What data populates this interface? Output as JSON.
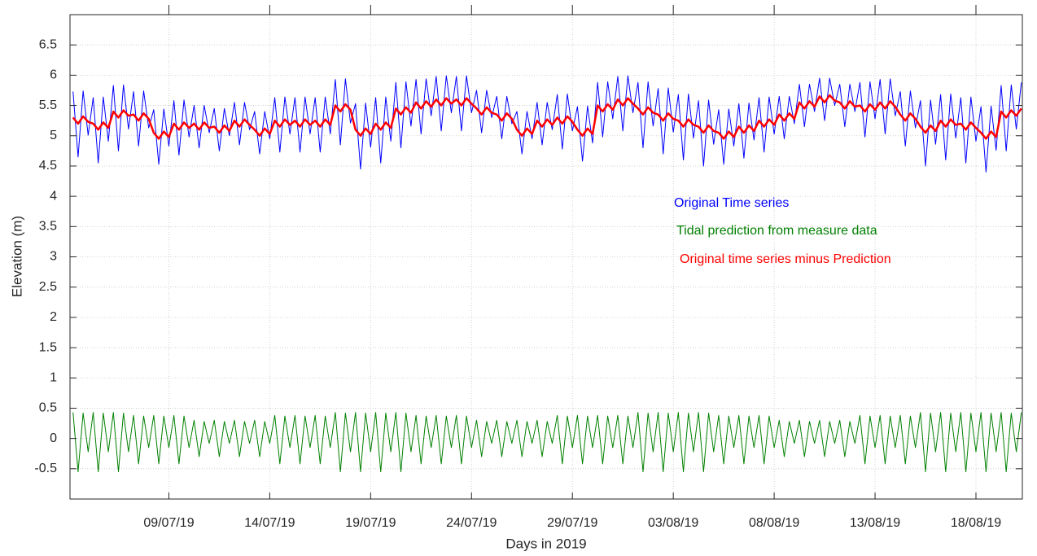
{
  "chart_data": {
    "type": "line",
    "xlabel": "Days in 2019",
    "ylabel": "Elevation (m)",
    "xlim": [
      185.1,
      232.3
    ],
    "ylim": [
      -1,
      7
    ],
    "xticks": [
      {
        "value": 190,
        "label": "09/07/19"
      },
      {
        "value": 195,
        "label": "14/07/19"
      },
      {
        "value": 200,
        "label": "19/07/19"
      },
      {
        "value": 205,
        "label": "24/07/19"
      },
      {
        "value": 210,
        "label": "29/07/19"
      },
      {
        "value": 215,
        "label": "03/08/19"
      },
      {
        "value": 220,
        "label": "08/08/19"
      },
      {
        "value": 225,
        "label": "13/08/19"
      },
      {
        "value": 230,
        "label": "18/08/19"
      }
    ],
    "yticks": [
      -0.5,
      0,
      0.5,
      1,
      1.5,
      2,
      2.5,
      3,
      3.5,
      4,
      4.5,
      5,
      5.5,
      6,
      6.5
    ],
    "grid": true,
    "x": [
      185.25,
      185.5,
      185.75,
      186,
      186.25,
      186.5,
      186.75,
      187,
      187.25,
      187.5,
      187.75,
      188,
      188.25,
      188.5,
      188.75,
      189,
      189.25,
      189.5,
      189.75,
      190,
      190.25,
      190.5,
      190.75,
      191,
      191.25,
      191.5,
      191.75,
      192,
      192.25,
      192.5,
      192.75,
      193,
      193.25,
      193.5,
      193.75,
      194,
      194.25,
      194.5,
      194.75,
      195,
      195.25,
      195.5,
      195.75,
      196,
      196.25,
      196.5,
      196.75,
      197,
      197.25,
      197.5,
      197.75,
      198,
      198.25,
      198.5,
      198.75,
      199,
      199.25,
      199.5,
      199.75,
      200,
      200.25,
      200.5,
      200.75,
      201,
      201.25,
      201.5,
      201.75,
      202,
      202.25,
      202.5,
      202.75,
      203,
      203.25,
      203.5,
      203.75,
      204,
      204.25,
      204.5,
      204.75,
      205,
      205.25,
      205.5,
      205.75,
      206,
      206.25,
      206.5,
      206.75,
      207,
      207.25,
      207.5,
      207.75,
      208,
      208.25,
      208.5,
      208.75,
      209,
      209.25,
      209.5,
      209.75,
      210,
      210.25,
      210.5,
      210.75,
      211,
      211.25,
      211.5,
      211.75,
      212,
      212.25,
      212.5,
      212.75,
      213,
      213.25,
      213.5,
      213.75,
      214,
      214.25,
      214.5,
      214.75,
      215,
      215.25,
      215.5,
      215.75,
      216,
      216.25,
      216.5,
      216.75,
      217,
      217.25,
      217.5,
      217.75,
      218,
      218.25,
      218.5,
      218.75,
      219,
      219.25,
      219.5,
      219.75,
      220,
      220.25,
      220.5,
      220.75,
      221,
      221.25,
      221.5,
      221.75,
      222,
      222.25,
      222.5,
      222.75,
      223,
      223.25,
      223.5,
      223.75,
      224,
      224.25,
      224.5,
      224.75,
      225,
      225.25,
      225.5,
      225.75,
      226,
      226.25,
      226.5,
      226.75,
      227,
      227.25,
      227.5,
      227.75,
      228,
      228.25,
      228.5,
      228.75,
      229,
      229.25,
      229.5,
      229.75,
      230,
      230.25,
      230.5,
      230.75,
      231,
      231.25,
      231.5,
      231.75,
      232,
      232.25
    ],
    "series": [
      {
        "name": "Original Time series",
        "color": "#0000ff",
        "width": 1,
        "values": [
          5.73,
          4.65,
          5.74,
          5.01,
          5.63,
          4.55,
          5.64,
          4.91,
          5.83,
          4.75,
          5.84,
          5.11,
          5.73,
          4.83,
          5.74,
          5.13,
          5.43,
          4.53,
          5.44,
          4.83,
          5.58,
          4.68,
          5.59,
          4.98,
          5.5,
          4.8,
          5.5,
          5.05,
          5.45,
          4.75,
          5.45,
          5.0,
          5.55,
          4.85,
          5.55,
          5.1,
          5.4,
          4.7,
          5.4,
          4.95,
          5.63,
          4.73,
          5.64,
          5.03,
          5.63,
          4.73,
          5.64,
          5.03,
          5.63,
          4.73,
          5.64,
          5.03,
          5.93,
          4.85,
          5.94,
          5.21,
          5.53,
          4.45,
          5.54,
          4.81,
          5.63,
          4.55,
          5.64,
          4.91,
          5.88,
          4.8,
          5.89,
          5.16,
          5.93,
          5.03,
          5.94,
          5.33,
          5.98,
          5.08,
          5.99,
          5.38,
          5.98,
          5.08,
          5.99,
          5.38,
          5.75,
          5.05,
          5.75,
          5.3,
          5.65,
          4.95,
          5.65,
          5.2,
          5.4,
          4.7,
          5.4,
          4.95,
          5.55,
          4.85,
          5.55,
          5.1,
          5.68,
          4.78,
          5.69,
          5.08,
          5.48,
          4.58,
          5.49,
          4.88,
          5.88,
          4.98,
          5.89,
          5.28,
          5.98,
          5.08,
          5.99,
          5.38,
          5.88,
          4.8,
          5.89,
          5.16,
          5.78,
          4.7,
          5.79,
          5.06,
          5.68,
          4.6,
          5.69,
          4.96,
          5.58,
          4.5,
          5.59,
          4.86,
          5.43,
          4.53,
          5.44,
          4.83,
          5.53,
          4.63,
          5.54,
          4.93,
          5.63,
          4.73,
          5.64,
          5.03,
          5.65,
          4.95,
          5.65,
          5.2,
          5.85,
          5.15,
          5.85,
          5.4,
          5.95,
          5.25,
          5.95,
          5.5,
          5.85,
          5.15,
          5.85,
          5.4,
          5.88,
          4.98,
          5.89,
          5.28,
          5.93,
          5.03,
          5.94,
          5.33,
          5.73,
          4.83,
          5.74,
          5.13,
          5.58,
          4.5,
          5.59,
          4.86,
          5.68,
          4.6,
          5.69,
          4.96,
          5.63,
          4.55,
          5.64,
          4.91,
          5.48,
          4.4,
          5.49,
          4.76,
          5.83,
          4.75,
          5.84,
          5.11,
          5.88
        ]
      },
      {
        "name": "Tidal prediction from measure data",
        "color": "#008000",
        "width": 1,
        "values": [
          0.43,
          -0.55,
          0.42,
          -0.22,
          0.43,
          -0.55,
          0.42,
          -0.22,
          0.43,
          -0.55,
          0.42,
          -0.22,
          0.38,
          -0.42,
          0.37,
          -0.15,
          0.38,
          -0.42,
          0.37,
          -0.15,
          0.38,
          -0.42,
          0.37,
          -0.15,
          0.3,
          -0.3,
          0.28,
          -0.08,
          0.3,
          -0.3,
          0.28,
          -0.08,
          0.3,
          -0.3,
          0.28,
          -0.08,
          0.3,
          -0.3,
          0.28,
          -0.08,
          0.38,
          -0.42,
          0.37,
          -0.15,
          0.38,
          -0.42,
          0.37,
          -0.15,
          0.38,
          -0.42,
          0.37,
          -0.15,
          0.43,
          -0.55,
          0.42,
          -0.22,
          0.43,
          -0.55,
          0.42,
          -0.22,
          0.43,
          -0.55,
          0.42,
          -0.22,
          0.43,
          -0.55,
          0.42,
          -0.22,
          0.38,
          -0.42,
          0.37,
          -0.15,
          0.38,
          -0.42,
          0.37,
          -0.15,
          0.38,
          -0.42,
          0.37,
          -0.15,
          0.3,
          -0.3,
          0.28,
          -0.08,
          0.3,
          -0.3,
          0.28,
          -0.08,
          0.3,
          -0.3,
          0.28,
          -0.08,
          0.3,
          -0.3,
          0.28,
          -0.08,
          0.38,
          -0.42,
          0.37,
          -0.15,
          0.38,
          -0.42,
          0.37,
          -0.15,
          0.38,
          -0.42,
          0.37,
          -0.15,
          0.38,
          -0.42,
          0.37,
          -0.15,
          0.43,
          -0.55,
          0.42,
          -0.22,
          0.43,
          -0.55,
          0.42,
          -0.22,
          0.43,
          -0.55,
          0.42,
          -0.22,
          0.43,
          -0.55,
          0.42,
          -0.22,
          0.38,
          -0.42,
          0.37,
          -0.15,
          0.38,
          -0.42,
          0.37,
          -0.15,
          0.38,
          -0.42,
          0.37,
          -0.15,
          0.3,
          -0.3,
          0.28,
          -0.08,
          0.3,
          -0.3,
          0.28,
          -0.08,
          0.3,
          -0.3,
          0.28,
          -0.08,
          0.3,
          -0.3,
          0.28,
          -0.08,
          0.38,
          -0.42,
          0.37,
          -0.15,
          0.38,
          -0.42,
          0.37,
          -0.15,
          0.38,
          -0.42,
          0.37,
          -0.15,
          0.43,
          -0.55,
          0.42,
          -0.22,
          0.43,
          -0.55,
          0.42,
          -0.22,
          0.43,
          -0.55,
          0.42,
          -0.22,
          0.43,
          -0.55,
          0.42,
          -0.22,
          0.43,
          -0.55,
          0.42,
          -0.22,
          0.43
        ]
      },
      {
        "name": "Original time series minus Prediction",
        "color": "#ff0000",
        "width": 2.5,
        "values": [
          5.3,
          5.2,
          5.32,
          5.23,
          5.2,
          5.1,
          5.22,
          5.13,
          5.4,
          5.3,
          5.42,
          5.33,
          5.35,
          5.25,
          5.37,
          5.28,
          5.05,
          4.95,
          5.07,
          4.98,
          5.2,
          5.1,
          5.22,
          5.13,
          5.2,
          5.1,
          5.22,
          5.13,
          5.15,
          5.05,
          5.17,
          5.08,
          5.25,
          5.15,
          5.27,
          5.18,
          5.1,
          5.0,
          5.12,
          5.03,
          5.25,
          5.15,
          5.27,
          5.18,
          5.25,
          5.15,
          5.27,
          5.18,
          5.25,
          5.15,
          5.27,
          5.18,
          5.5,
          5.4,
          5.52,
          5.43,
          5.1,
          5.0,
          5.12,
          5.03,
          5.2,
          5.1,
          5.22,
          5.13,
          5.45,
          5.35,
          5.47,
          5.38,
          5.55,
          5.45,
          5.57,
          5.48,
          5.6,
          5.5,
          5.62,
          5.53,
          5.6,
          5.5,
          5.62,
          5.53,
          5.45,
          5.35,
          5.47,
          5.38,
          5.35,
          5.25,
          5.37,
          5.28,
          5.1,
          5.0,
          5.12,
          5.03,
          5.25,
          5.15,
          5.27,
          5.18,
          5.3,
          5.2,
          5.32,
          5.23,
          5.1,
          5.0,
          5.12,
          5.03,
          5.5,
          5.4,
          5.52,
          5.43,
          5.6,
          5.5,
          5.62,
          5.53,
          5.45,
          5.35,
          5.47,
          5.38,
          5.35,
          5.25,
          5.37,
          5.28,
          5.25,
          5.15,
          5.27,
          5.18,
          5.15,
          5.05,
          5.17,
          5.08,
          5.05,
          4.95,
          5.07,
          4.98,
          5.15,
          5.05,
          5.17,
          5.08,
          5.25,
          5.15,
          5.27,
          5.18,
          5.35,
          5.25,
          5.37,
          5.28,
          5.55,
          5.45,
          5.57,
          5.48,
          5.65,
          5.55,
          5.67,
          5.58,
          5.55,
          5.45,
          5.57,
          5.48,
          5.5,
          5.4,
          5.52,
          5.43,
          5.55,
          5.45,
          5.57,
          5.48,
          5.35,
          5.25,
          5.37,
          5.28,
          5.15,
          5.05,
          5.17,
          5.08,
          5.25,
          5.15,
          5.27,
          5.18,
          5.2,
          5.1,
          5.22,
          5.13,
          5.05,
          4.95,
          5.07,
          4.98,
          5.4,
          5.3,
          5.42,
          5.33,
          5.45
        ]
      }
    ]
  }
}
